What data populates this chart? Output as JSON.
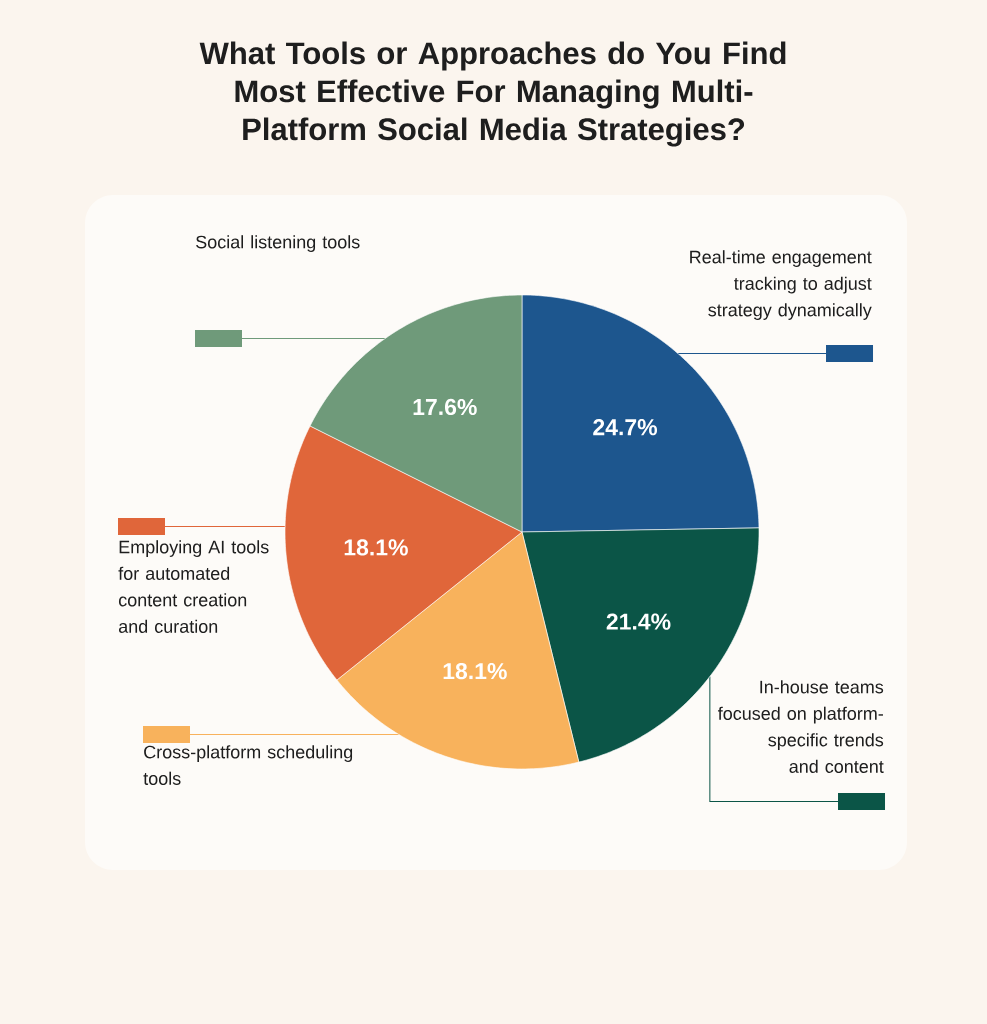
{
  "chart_data": {
    "type": "pie",
    "title": "What Tools or Approaches do You Find Most Effective For Managing Multi-Platform Social Media Strategies?",
    "categories": [
      "Real-time engagement tracking to adjust strategy dynamically",
      "In-house teams focused on platform-specific trends and content",
      "Cross-platform scheduling tools",
      "Employing AI tools for automated content creation and curation",
      "Social listening tools"
    ],
    "values": [
      24.7,
      21.4,
      18.1,
      18.1,
      17.6
    ],
    "value_labels": [
      "24.7%",
      "21.4%",
      "18.1%",
      "18.1%",
      "17.6%"
    ],
    "colors": [
      "#1d568e",
      "#0b5547",
      "#f8b25c",
      "#e0663a",
      "#6f9a7a"
    ],
    "legend": "bottom left"
  }
}
